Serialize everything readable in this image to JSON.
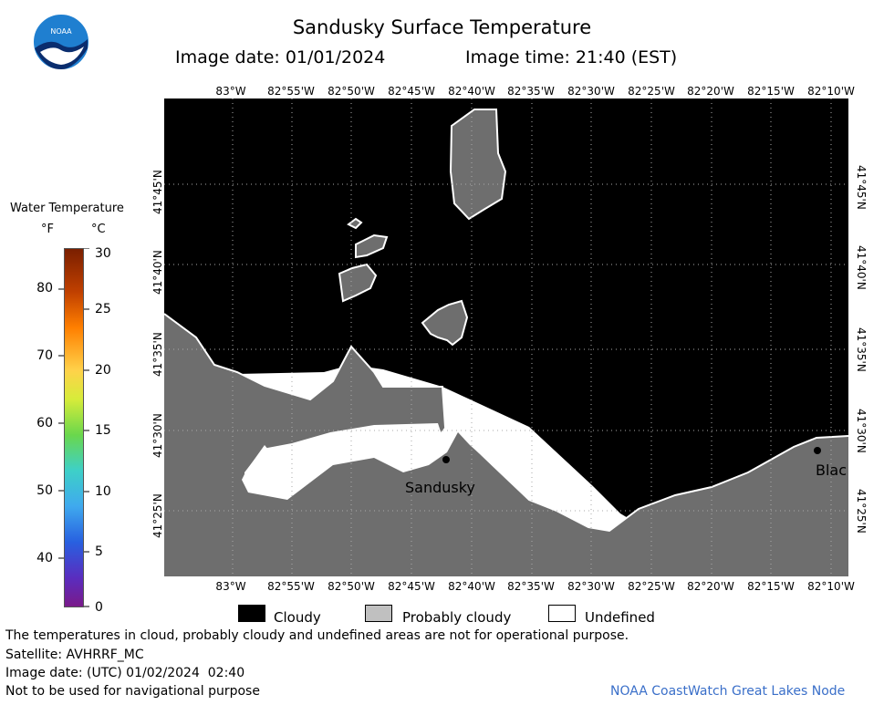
{
  "header": {
    "title": "Sandusky Surface Temperature",
    "image_date": "Image date: 01/01/2024",
    "image_time": "Image time: 21:40 (EST)"
  },
  "logo": {
    "text": "NOAA",
    "colors": {
      "outer": "#ffffff",
      "sky": "#1f7fd0",
      "band": "#0a2d6e"
    }
  },
  "map": {
    "longitude_ticks": [
      "83°W",
      "82°55'W",
      "82°50'W",
      "82°45'W",
      "82°40'W",
      "82°35'W",
      "82°30'W",
      "82°25'W",
      "82°20'W",
      "82°15'W",
      "82°10'W"
    ],
    "latitude_ticks": [
      "41°45'N",
      "41°40'N",
      "41°35'N",
      "41°30'N",
      "41°25'N"
    ],
    "places": [
      {
        "name": "Sandusky"
      },
      {
        "name": "Blac"
      }
    ],
    "colors": {
      "cloudy": "#000000",
      "probably_cloudy": "#6e6e6e",
      "undefined": "#ffffff",
      "coast": "#ffffff"
    }
  },
  "color_scale": {
    "title": "Water Temperature",
    "unit_f": "°F",
    "unit_c": "°C",
    "fahrenheit_labels": [
      "80",
      "70",
      "60",
      "50",
      "40"
    ],
    "celsius_labels": [
      "30",
      "25",
      "20",
      "15",
      "10",
      "5",
      "0"
    ]
  },
  "legend": {
    "cloudy": "Cloudy",
    "probably_cloudy": "Probably cloudy",
    "undefined": "Undefined"
  },
  "footer": {
    "disclaimer": "The temperatures in cloud, probably cloudy and undefined areas are not for operational purpose.",
    "satellite": "Satellite: AVHRRF_MC",
    "utc_date": "Image date: (UTC) 01/02/2024  02:40",
    "navigation": "Not to be used for navigational purpose",
    "credit": "NOAA CoastWatch Great Lakes Node"
  }
}
